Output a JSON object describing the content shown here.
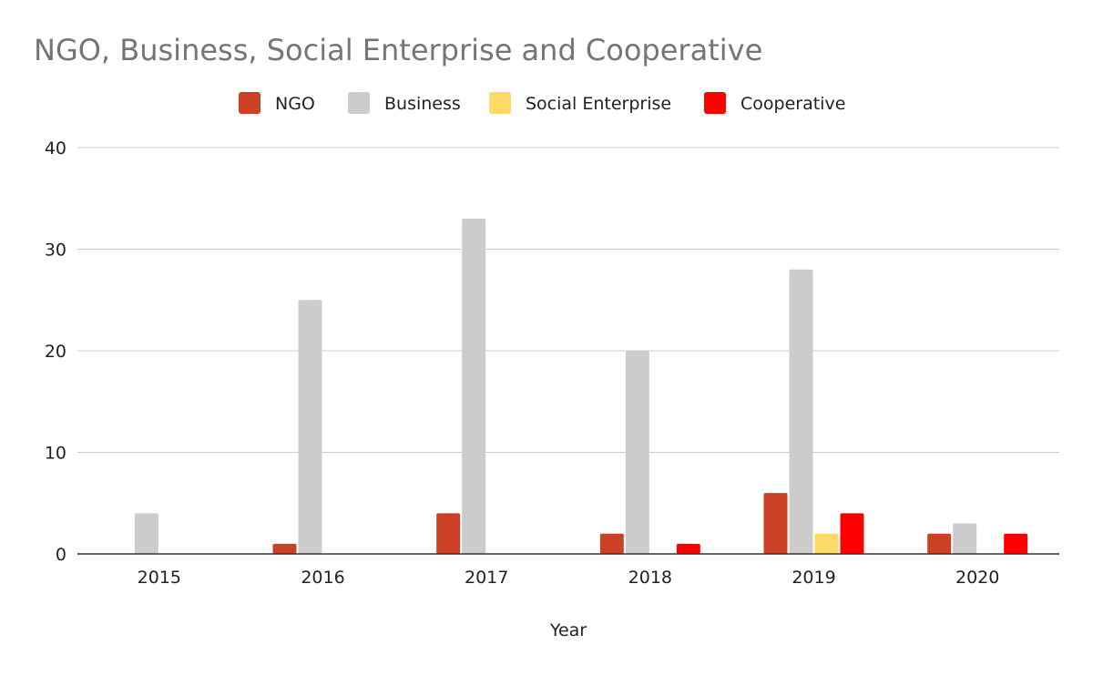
{
  "chart_data": {
    "type": "bar",
    "title": "NGO, Business, Social Enterprise and Cooperative",
    "xlabel": "Year",
    "ylabel": "",
    "categories": [
      "2015",
      "2016",
      "2017",
      "2018",
      "2019",
      "2020"
    ],
    "ylim": [
      0,
      40
    ],
    "yticks": [
      0,
      10,
      20,
      30,
      40
    ],
    "grid": true,
    "legend_position": "top",
    "series": [
      {
        "name": "NGO",
        "color": "#cc4125",
        "values": [
          0,
          1,
          4,
          2,
          6,
          2
        ]
      },
      {
        "name": "Business",
        "color": "#cccccc",
        "values": [
          4,
          25,
          33,
          20,
          28,
          3
        ]
      },
      {
        "name": "Social Enterprise",
        "color": "#ffd966",
        "values": [
          0,
          0,
          0,
          0,
          2,
          0
        ]
      },
      {
        "name": "Cooperative",
        "color": "#ff0000",
        "values": [
          0,
          0,
          0,
          1,
          4,
          2
        ]
      }
    ]
  }
}
